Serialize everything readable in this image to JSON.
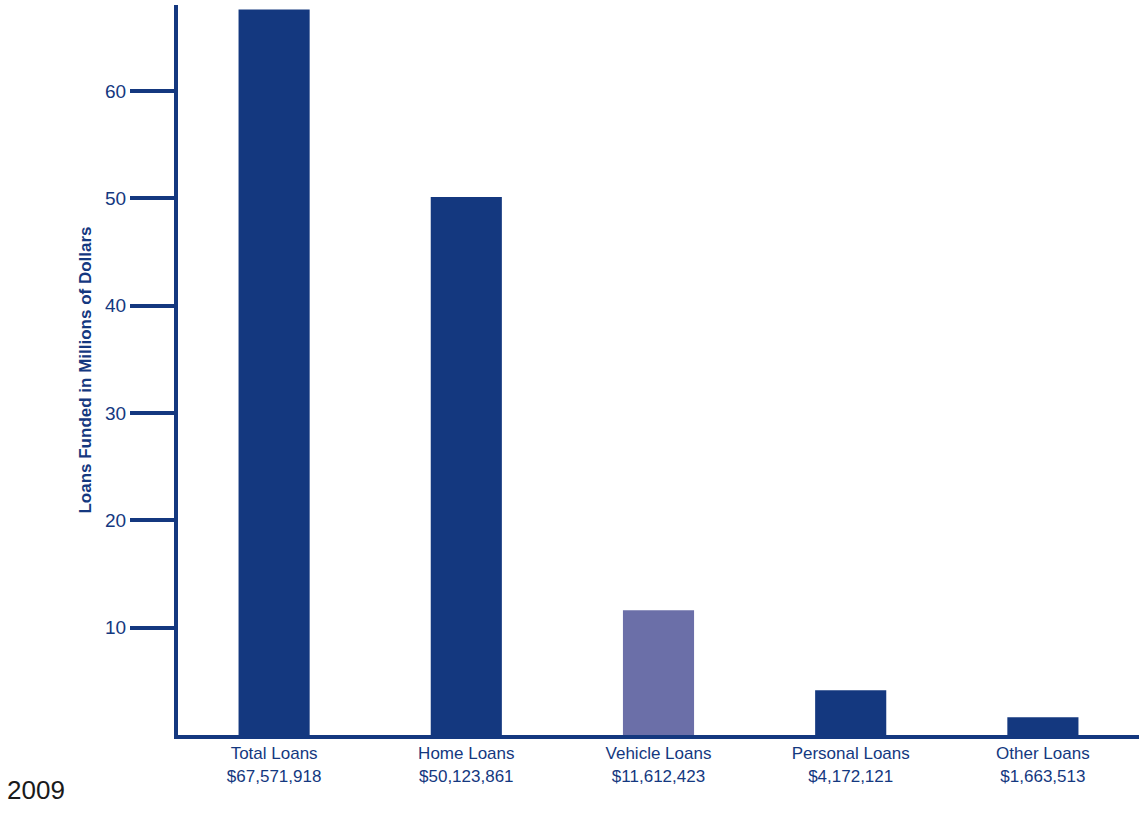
{
  "chart_data": {
    "type": "bar",
    "y_label": "Loans Funded in Millions of Dollars",
    "annotations": [
      "2009"
    ],
    "categories": [
      "Total Loans",
      "Home Loans",
      "Vehicle Loans",
      "Personal Loans",
      "Other Loans"
    ],
    "values": [
      67.571918,
      50.123861,
      11.612423,
      4.172121,
      1.663513
    ],
    "value_labels": [
      "$67,571,918",
      "$50,123,861",
      "$11,612,423",
      "$4,172,121",
      "$1,663,513"
    ],
    "colors": [
      "#14387f",
      "#14387f",
      "#6b6fa8",
      "#14387f",
      "#14387f"
    ],
    "ylim": [
      0,
      68
    ],
    "yticks": [
      10,
      20,
      30,
      40,
      50,
      60
    ],
    "grid": false
  }
}
